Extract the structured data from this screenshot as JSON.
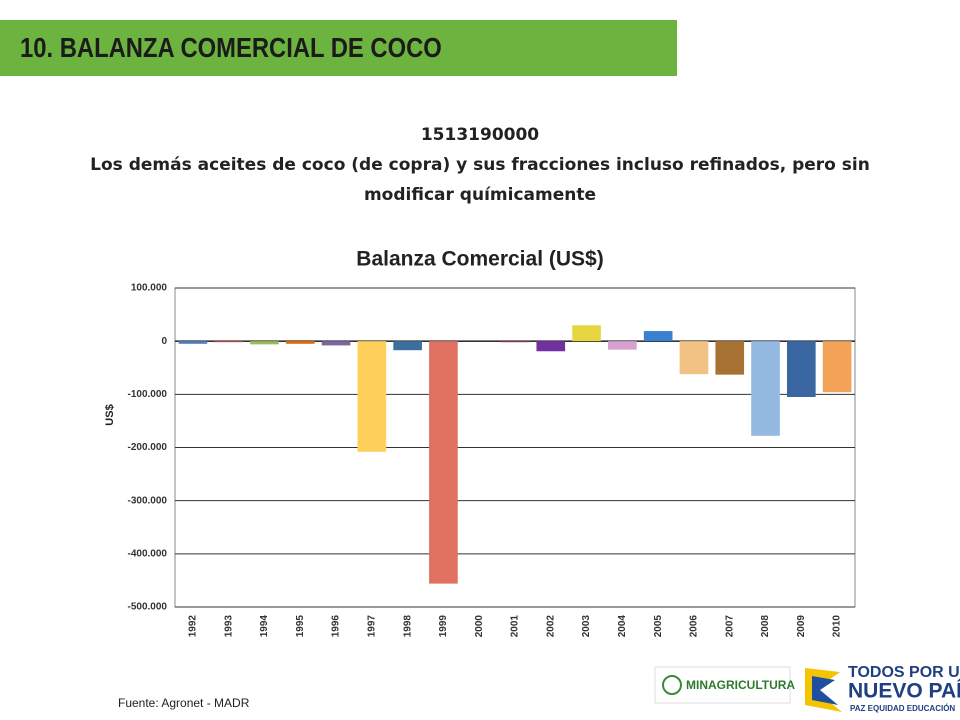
{
  "slide": {
    "header": "10. BALANZA COMERCIAL DE COCO",
    "code": "1513190000",
    "description": "Los demás aceites de coco (de copra) y sus fracciones incluso refinados, pero sin modificar químicamente",
    "source": "Fuente: Agronet - MADR",
    "logo_left": "MINAGRICULTURA",
    "logo_right_1": "TODOS POR UN",
    "logo_right_2": "NUEVO PAÍS",
    "logo_right_3": "PAZ  EQUIDAD  EDUCACIÓN"
  },
  "chart_data": {
    "type": "bar",
    "title": "Balanza Comercial (US$)",
    "y_label": "US$",
    "categories": [
      "1992",
      "1993",
      "1994",
      "1995",
      "1996",
      "1997",
      "1998",
      "1999",
      "2000",
      "2001",
      "2002",
      "2003",
      "2004",
      "2005",
      "2006",
      "2007",
      "2008",
      "2009",
      "2010"
    ],
    "values": [
      -5000,
      -2000,
      -6000,
      -5000,
      -8000,
      -208000,
      -17000,
      -456000,
      0,
      -2000,
      -19000,
      30000,
      -16000,
      19000,
      -62000,
      -63000,
      -178000,
      -105000,
      -96000
    ],
    "colors": [
      "#4f81bd",
      "#c0504d",
      "#9bbb59",
      "#e46c0a",
      "#8064a2",
      "#ffcf5c",
      "#3d6ea0",
      "#e07060",
      "#cccccc",
      "#a0305a",
      "#7030a0",
      "#e6d640",
      "#d8a0d0",
      "#3a80d0",
      "#f2c285",
      "#a87332",
      "#94b9e0",
      "#3a67a2",
      "#f2a358"
    ],
    "ylim": [
      -500000,
      100000
    ],
    "yticks": [
      {
        "value": -500000,
        "label": "-500.000"
      },
      {
        "value": -400000,
        "label": "-400.000"
      },
      {
        "value": -300000,
        "label": "-300.000"
      },
      {
        "value": -200000,
        "label": "-200.000"
      },
      {
        "value": -100000,
        "label": "-100.000"
      },
      0,
      {
        "value": 100000,
        "label": "100.000"
      }
    ],
    "grid": true
  }
}
